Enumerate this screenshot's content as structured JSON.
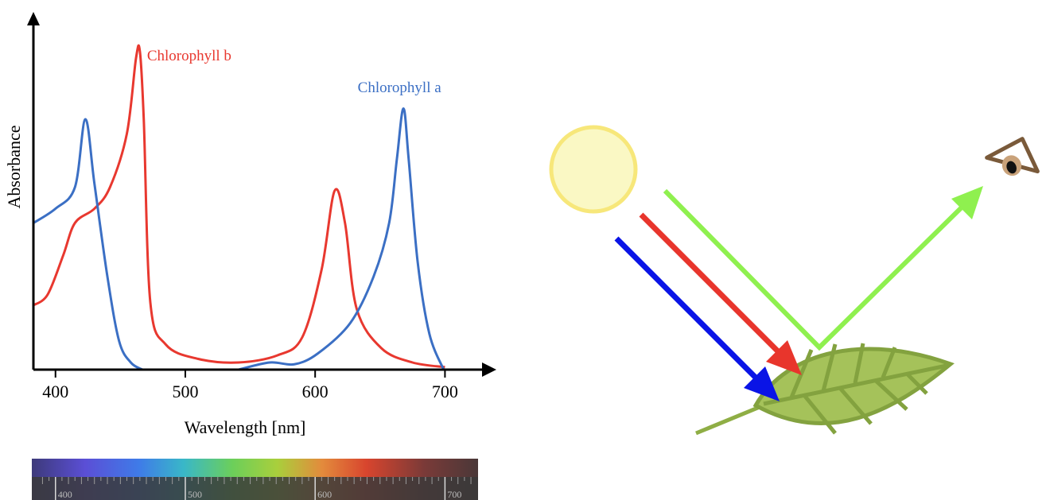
{
  "chart_data": {
    "type": "line",
    "x_label": "Wavelength [nm]",
    "y_label": "Absorbance",
    "xlim": [
      383,
      731
    ],
    "ylim": [
      0,
      1
    ],
    "xticks": [
      400,
      500,
      600,
      700
    ],
    "series": [
      {
        "name": "Chlorophyll b",
        "color": "#e8382f",
        "x": [
          383,
          394,
          406,
          415,
          430,
          442,
          455,
          462,
          465,
          468,
          473,
          485,
          510,
          541,
          571,
          590,
          605,
          615,
          623,
          632,
          651,
          675,
          700
        ],
        "values": [
          0.18,
          0.21,
          0.32,
          0.41,
          0.45,
          0.51,
          0.66,
          0.87,
          0.89,
          0.7,
          0.19,
          0.07,
          0.03,
          0.02,
          0.04,
          0.09,
          0.28,
          0.5,
          0.41,
          0.17,
          0.06,
          0.02,
          0.007
        ]
      },
      {
        "name": "Chlorophyll a",
        "color": "#3b6fc4",
        "x": [
          383,
          400,
          415,
          423,
          430,
          440,
          449,
          458,
          467,
          null,
          541,
          565,
          584,
          602,
          627,
          645,
          657,
          663,
          668,
          672,
          679,
          688,
          699
        ],
        "values": [
          0.41,
          0.45,
          0.51,
          0.7,
          0.52,
          0.26,
          0.08,
          0.02,
          0,
          null,
          0,
          0.02,
          0.015,
          0.045,
          0.13,
          0.26,
          0.41,
          0.59,
          0.73,
          0.59,
          0.3,
          0.1,
          0
        ]
      }
    ],
    "spectrum_ticks": [
      400,
      500,
      600,
      700
    ]
  }
}
